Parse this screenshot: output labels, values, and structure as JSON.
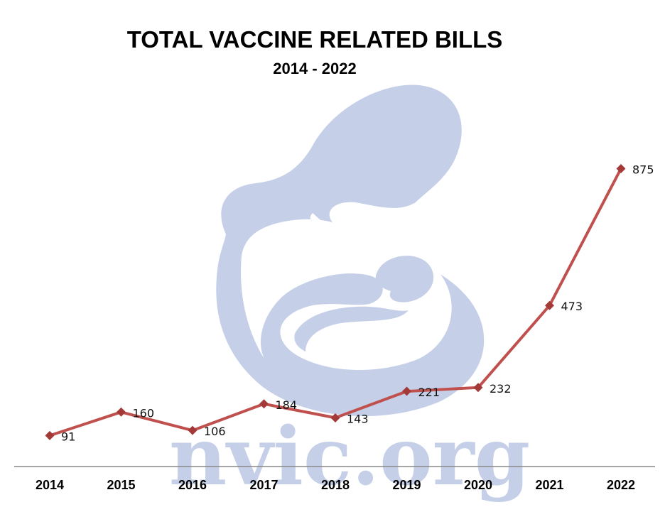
{
  "chart_data": {
    "type": "line",
    "title": "TOTAL VACCINE RELATED BILLS",
    "subtitle": "2014 - 2022",
    "xlabel": "",
    "ylabel": "",
    "categories": [
      "2014",
      "2015",
      "2016",
      "2017",
      "2018",
      "2019",
      "2020",
      "2021",
      "2022"
    ],
    "series": [
      {
        "values": [
          91,
          160,
          106,
          184,
          143,
          221,
          232,
          473,
          875
        ],
        "labels": [
          "91",
          "160",
          "106",
          "184",
          "143",
          "221",
          "232",
          "473",
          "875"
        ]
      }
    ],
    "ylim": [
      0,
      1000
    ],
    "grid": false,
    "legend": "none",
    "marker": "diamond",
    "colors": {
      "line": "#c0504d",
      "marker": "#a33a38",
      "axis": "#888888",
      "watermark": "#c5d0e8"
    }
  },
  "watermark": {
    "text": "nvic.org",
    "logo_icon": "mother-and-child-logo-icon"
  }
}
